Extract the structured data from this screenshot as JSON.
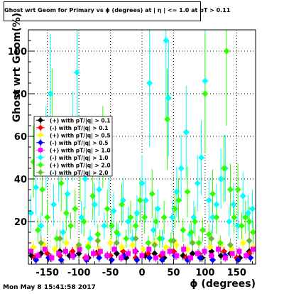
{
  "chart_data": {
    "type": "scatter",
    "title": "Ghost wrt Geom for Primary vs ϕ (degrees) at | η | <= 1.0 at pT > 0.11",
    "xlabel": "ϕ (degrees)",
    "ylabel": "Ghost wrt Geom(%)",
    "xlim": [
      -180,
      180
    ],
    "ylim": [
      0,
      110
    ],
    "xticks": [
      -150,
      -100,
      -50,
      0,
      50,
      100,
      150
    ],
    "yticks": [
      20,
      40,
      60,
      80,
      100
    ],
    "grid": true,
    "legend_position": "left-middle",
    "series": [
      {
        "name": "(+) with pT/|q| > 0.1",
        "color": "#000000",
        "marker": "diamond",
        "points": [
          [
            -175,
            4
          ],
          [
            -160,
            5
          ],
          [
            -145,
            3
          ],
          [
            -130,
            6
          ],
          [
            -115,
            4
          ],
          [
            -100,
            5
          ],
          [
            -85,
            3
          ],
          [
            -70,
            6
          ],
          [
            -55,
            4
          ],
          [
            -40,
            5
          ],
          [
            -25,
            3
          ],
          [
            -10,
            6
          ],
          [
            5,
            4
          ],
          [
            20,
            5
          ],
          [
            35,
            3
          ],
          [
            50,
            6
          ],
          [
            65,
            4
          ],
          [
            80,
            5
          ],
          [
            95,
            3
          ],
          [
            110,
            6
          ],
          [
            125,
            4
          ],
          [
            140,
            5
          ],
          [
            155,
            3
          ],
          [
            170,
            6
          ]
        ]
      },
      {
        "name": "(-) with pT/|q| > 0.1",
        "color": "#ff0000",
        "marker": "diamond",
        "points": [
          [
            -170,
            3
          ],
          [
            -150,
            5
          ],
          [
            -130,
            4
          ],
          [
            -110,
            6
          ],
          [
            -90,
            3
          ],
          [
            -70,
            5
          ],
          [
            -50,
            4
          ],
          [
            -30,
            6
          ],
          [
            -10,
            3
          ],
          [
            10,
            5
          ],
          [
            30,
            4
          ],
          [
            50,
            6
          ],
          [
            70,
            3
          ],
          [
            90,
            5
          ],
          [
            110,
            4
          ],
          [
            130,
            6
          ],
          [
            150,
            3
          ],
          [
            170,
            5
          ]
        ]
      },
      {
        "name": "(+) with pT/|q| > 0.5",
        "color": "#ffff00",
        "marker": "diamond",
        "points": [
          [
            -172,
            8
          ],
          [
            -155,
            9
          ],
          [
            -138,
            7
          ],
          [
            -120,
            10
          ],
          [
            -102,
            8
          ],
          [
            -85,
            9
          ],
          [
            -68,
            7
          ],
          [
            -50,
            10
          ],
          [
            -32,
            8
          ],
          [
            -15,
            9
          ],
          [
            2,
            7
          ],
          [
            20,
            10
          ],
          [
            38,
            8
          ],
          [
            55,
            9
          ],
          [
            72,
            7
          ],
          [
            90,
            10
          ],
          [
            108,
            8
          ],
          [
            125,
            9
          ],
          [
            142,
            7
          ],
          [
            160,
            10
          ],
          [
            176,
            8
          ]
        ]
      },
      {
        "name": "(-) with pT/|q| > 0.5",
        "color": "#0000ff",
        "marker": "diamond",
        "points": [
          [
            -168,
            2
          ],
          [
            -148,
            3
          ],
          [
            -128,
            2
          ],
          [
            -108,
            4
          ],
          [
            -88,
            2
          ],
          [
            -68,
            3
          ],
          [
            -48,
            2
          ],
          [
            -28,
            4
          ],
          [
            -8,
            2
          ],
          [
            12,
            3
          ],
          [
            32,
            2
          ],
          [
            52,
            4
          ],
          [
            72,
            2
          ],
          [
            92,
            3
          ],
          [
            112,
            2
          ],
          [
            132,
            4
          ],
          [
            152,
            2
          ],
          [
            172,
            3
          ]
        ]
      },
      {
        "name": "(+) with pT/|q| > 1.0",
        "color": "#ff00ff",
        "marker": "square",
        "points": [
          [
            -176,
            6
          ],
          [
            -165,
            4
          ],
          [
            -154,
            7
          ],
          [
            -143,
            3
          ],
          [
            -132,
            5
          ],
          [
            -121,
            6
          ],
          [
            -110,
            4
          ],
          [
            -99,
            7
          ],
          [
            -88,
            3
          ],
          [
            -77,
            5
          ],
          [
            -66,
            6
          ],
          [
            -55,
            4
          ],
          [
            -44,
            7
          ],
          [
            -33,
            3
          ],
          [
            -22,
            5
          ],
          [
            -11,
            6
          ],
          [
            0,
            4
          ],
          [
            11,
            7
          ],
          [
            22,
            3
          ],
          [
            33,
            5
          ],
          [
            44,
            6
          ],
          [
            55,
            4
          ],
          [
            66,
            7
          ],
          [
            77,
            3
          ],
          [
            88,
            5
          ],
          [
            99,
            6
          ],
          [
            110,
            4
          ],
          [
            121,
            7
          ],
          [
            132,
            3
          ],
          [
            143,
            5
          ],
          [
            154,
            6
          ],
          [
            165,
            4
          ],
          [
            176,
            7
          ]
        ]
      },
      {
        "name": "(-) with pT/|q| > 1.0",
        "color": "#00ffff",
        "marker": "diamond",
        "points": [
          [
            -176,
            24
          ],
          [
            -168,
            36
          ],
          [
            -160,
            18
          ],
          [
            -152,
            55
          ],
          [
            -145,
            80
          ],
          [
            -140,
            28
          ],
          [
            -132,
            45
          ],
          [
            -125,
            15
          ],
          [
            -118,
            33
          ],
          [
            -110,
            60
          ],
          [
            -103,
            90
          ],
          [
            -96,
            22
          ],
          [
            -90,
            40
          ],
          [
            -82,
            12
          ],
          [
            -75,
            28
          ],
          [
            -68,
            35
          ],
          [
            -60,
            18
          ],
          [
            -52,
            44
          ],
          [
            -45,
            25
          ],
          [
            -38,
            14
          ],
          [
            -30,
            30
          ],
          [
            -22,
            20
          ],
          [
            -15,
            12
          ],
          [
            -8,
            24
          ],
          [
            0,
            38
          ],
          [
            6,
            30
          ],
          [
            12,
            85
          ],
          [
            18,
            16
          ],
          [
            25,
            26
          ],
          [
            32,
            12
          ],
          [
            38,
            105
          ],
          [
            42,
            78
          ],
          [
            48,
            22
          ],
          [
            55,
            34
          ],
          [
            62,
            45
          ],
          [
            70,
            62
          ],
          [
            76,
            14
          ],
          [
            82,
            22
          ],
          [
            88,
            38
          ],
          [
            94,
            50
          ],
          [
            100,
            86
          ],
          [
            106,
            30
          ],
          [
            112,
            22
          ],
          [
            118,
            28
          ],
          [
            125,
            40
          ],
          [
            132,
            45
          ],
          [
            138,
            20
          ],
          [
            145,
            28
          ],
          [
            152,
            18
          ],
          [
            160,
            32
          ],
          [
            168,
            24
          ],
          [
            175,
            26
          ]
        ]
      },
      {
        "name": "(+) with pT/|q| > 2.0",
        "color": "#33ff00",
        "marker": "diamond",
        "points": [
          [
            -172,
            48
          ],
          [
            -165,
            16
          ],
          [
            -158,
            35
          ],
          [
            -150,
            22
          ],
          [
            -142,
            68
          ],
          [
            -135,
            12
          ],
          [
            -128,
            38
          ],
          [
            -120,
            24
          ],
          [
            -113,
            18
          ],
          [
            -106,
            26
          ],
          [
            -98,
            45
          ],
          [
            -92,
            20
          ],
          [
            -85,
            8
          ],
          [
            -78,
            32
          ],
          [
            -70,
            14
          ],
          [
            -62,
            55
          ],
          [
            -55,
            26
          ],
          [
            -48,
            18
          ],
          [
            -40,
            15
          ],
          [
            -32,
            28
          ],
          [
            -25,
            12
          ],
          [
            -18,
            22
          ],
          [
            -10,
            18
          ],
          [
            -3,
            30
          ],
          [
            4,
            22
          ],
          [
            10,
            10
          ],
          [
            16,
            33
          ],
          [
            22,
            20
          ],
          [
            28,
            12
          ],
          [
            35,
            22
          ],
          [
            40,
            68
          ],
          [
            46,
            11
          ],
          [
            52,
            26
          ],
          [
            58,
            30
          ],
          [
            65,
            16
          ],
          [
            72,
            34
          ],
          [
            78,
            15
          ],
          [
            84,
            20
          ],
          [
            90,
            10
          ],
          [
            96,
            16
          ],
          [
            100,
            80
          ],
          [
            106,
            14
          ],
          [
            112,
            33
          ],
          [
            118,
            22
          ],
          [
            124,
            10
          ],
          [
            130,
            45
          ],
          [
            134,
            100
          ],
          [
            140,
            35
          ],
          [
            146,
            22
          ],
          [
            152,
            35
          ],
          [
            158,
            18
          ],
          [
            164,
            22
          ],
          [
            170,
            20
          ],
          [
            176,
            15
          ]
        ]
      },
      {
        "name": "(-) with pT/|q| > 2.0",
        "color": "#66bb33",
        "marker": "diamond",
        "points": [
          [
            -160,
            10
          ],
          [
            -130,
            12
          ],
          [
            -100,
            9
          ],
          [
            -70,
            11
          ],
          [
            -40,
            10
          ],
          [
            -10,
            12
          ],
          [
            20,
            9
          ],
          [
            50,
            11
          ],
          [
            80,
            10
          ],
          [
            110,
            12
          ],
          [
            140,
            9
          ],
          [
            170,
            11
          ]
        ]
      }
    ]
  },
  "footer": {
    "timestamp": "Mon May  8 15:41:58 2017"
  }
}
